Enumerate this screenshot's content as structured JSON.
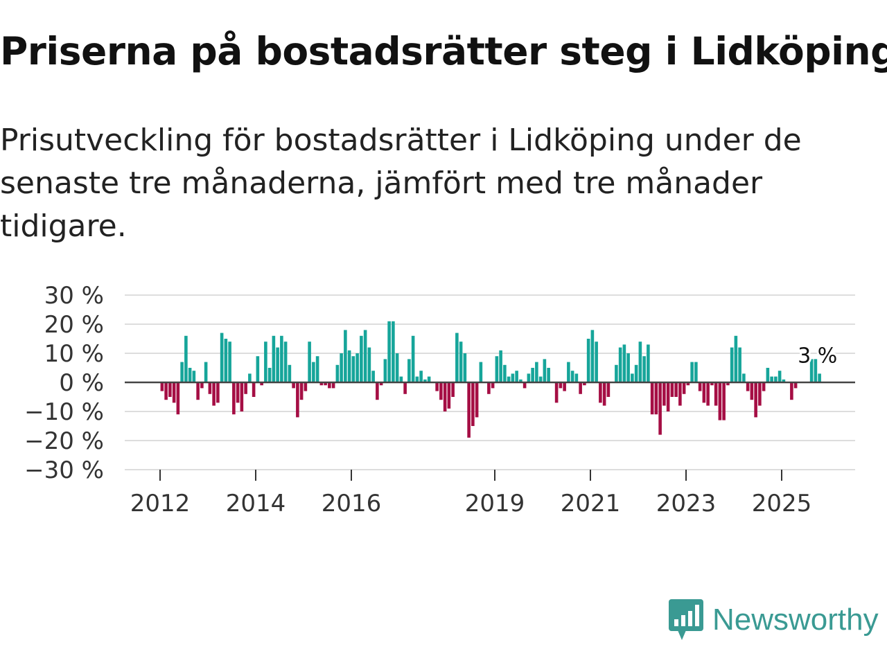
{
  "title": "Priserna på bostadsrätter steg i Lidköping",
  "subtitle": "Prisutveckling för bostadsrätter i Lidköping under de senaste tre månaderna, jämfört med tre månader tidigare.",
  "brand": {
    "name": "Newsworthy",
    "icon": "newsworthy-logo-icon",
    "color": "#3a9a93"
  },
  "colors": {
    "positive": "#16a59a",
    "negative": "#a50e44",
    "zero_line": "#444444",
    "grid": "#dddddd"
  },
  "chart_data": {
    "type": "bar",
    "title": "Priserna på bostadsrätter steg i Lidköping",
    "xlabel": "",
    "ylabel": "",
    "ylim": [
      -30,
      30
    ],
    "y_ticks": [
      30,
      20,
      10,
      0,
      -10,
      -20,
      -30
    ],
    "y_tick_labels": [
      "30 %",
      "20 %",
      "10 %",
      "0 %",
      "−10 %",
      "−20 %",
      "−30 %"
    ],
    "x_ticks": [
      2012,
      2014,
      2016,
      2019,
      2021,
      2023,
      2025
    ],
    "x_tick_labels": [
      "2012",
      "2014",
      "2016",
      "2019",
      "2021",
      "2023",
      "2025"
    ],
    "start_year": 2012,
    "months_per_bar": 1,
    "annotation": {
      "text": "3 %",
      "value": 3
    },
    "values": [
      -3,
      -6,
      -5,
      -7,
      -11,
      7,
      16,
      5,
      4,
      -6,
      -2,
      7,
      -4,
      -8,
      -7,
      17,
      15,
      14,
      -11,
      -7,
      -10,
      -4,
      3,
      -5,
      9,
      -1,
      14,
      5,
      16,
      12,
      16,
      14,
      6,
      -2,
      -12,
      -6,
      -3,
      14,
      7,
      9,
      -1,
      -1,
      -2,
      -2,
      6,
      10,
      18,
      11,
      9,
      10,
      16,
      18,
      12,
      4,
      -6,
      -1,
      8,
      21,
      21,
      10,
      2,
      -4,
      8,
      16,
      2,
      4,
      1,
      2,
      0,
      -3,
      -6,
      -10,
      -9,
      -5,
      17,
      14,
      10,
      -19,
      -15,
      -12,
      7,
      0,
      -4,
      -2,
      9,
      11,
      6,
      2,
      3,
      4,
      1,
      -2,
      3,
      5,
      7,
      2,
      8,
      5,
      0,
      -7,
      -2,
      -3,
      7,
      4,
      3,
      -4,
      -1,
      15,
      18,
      14,
      -7,
      -8,
      -5,
      0,
      6,
      12,
      13,
      10,
      3,
      6,
      14,
      9,
      13,
      -11,
      -11,
      -18,
      -8,
      -10,
      -5,
      -5,
      -8,
      -4,
      -1,
      7,
      7,
      -3,
      -7,
      -8,
      -1,
      -8,
      -13,
      -13,
      -1,
      12,
      16,
      12,
      3,
      -3,
      -6,
      -12,
      -8,
      -3,
      5,
      2,
      2,
      4,
      1,
      0,
      -6,
      -2,
      0,
      0,
      0,
      8,
      8,
      3
    ]
  }
}
